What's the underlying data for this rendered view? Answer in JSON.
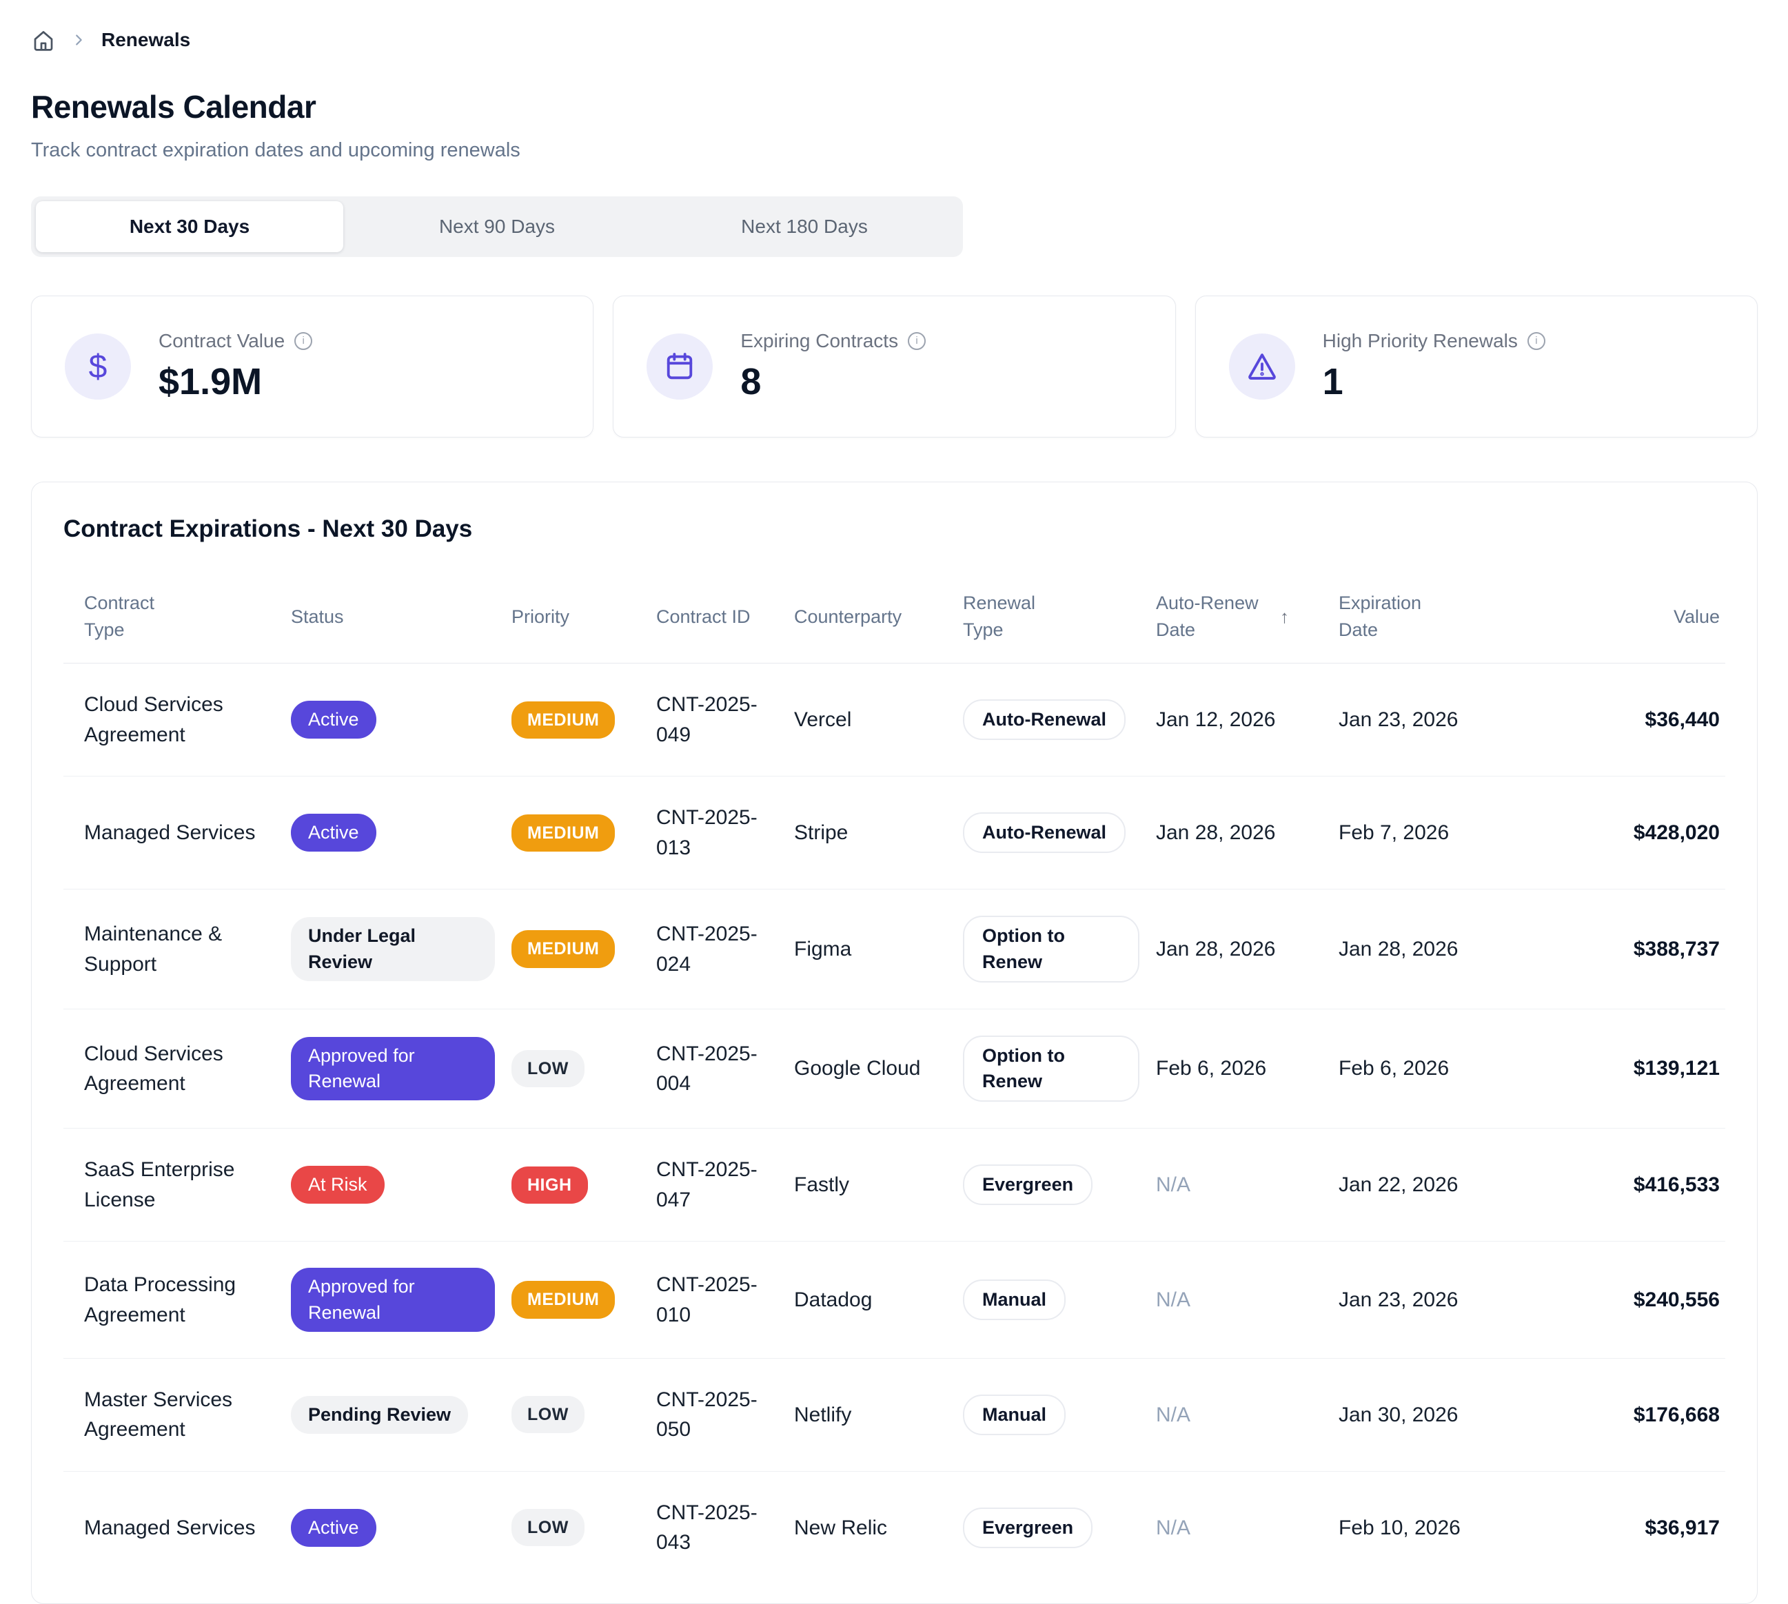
{
  "breadcrumb": {
    "home_icon": "home-icon",
    "separator": "›",
    "current": "Renewals"
  },
  "header": {
    "title": "Renewals Calendar",
    "subtitle": "Track contract expiration dates and upcoming renewals"
  },
  "tabs": [
    {
      "label": "Next 30 Days",
      "active": true
    },
    {
      "label": "Next 90 Days",
      "active": false
    },
    {
      "label": "Next 180 Days",
      "active": false
    }
  ],
  "stats": [
    {
      "icon": "dollar-icon",
      "label": "Contract Value",
      "value": "$1.9M"
    },
    {
      "icon": "calendar-icon",
      "label": "Expiring Contracts",
      "value": "8"
    },
    {
      "icon": "warning-icon",
      "label": "High Priority Renewals",
      "value": "1"
    }
  ],
  "table": {
    "title": "Contract Expirations - Next 30 Days",
    "columns": [
      "Contract Type",
      "Status",
      "Priority",
      "Contract ID",
      "Counterparty",
      "Renewal Type",
      "Auto-Renew Date",
      "Expiration Date",
      "Value"
    ],
    "sorted_column": "Auto-Renew Date",
    "sort_direction": "asc",
    "sort_icon": "↑",
    "rows": [
      {
        "contract_type": "Cloud Services Agreement",
        "status": "Active",
        "status_style": "purple",
        "priority": "MEDIUM",
        "priority_style": "orange",
        "contract_id": "CNT-2025-049",
        "counterparty": "Vercel",
        "renewal_type": "Auto-Renewal",
        "auto_renew_date": "Jan 12, 2026",
        "expiration_date": "Jan 23, 2026",
        "value": "$36,440"
      },
      {
        "contract_type": "Managed Services",
        "status": "Active",
        "status_style": "purple",
        "priority": "MEDIUM",
        "priority_style": "orange",
        "contract_id": "CNT-2025-013",
        "counterparty": "Stripe",
        "renewal_type": "Auto-Renewal",
        "auto_renew_date": "Jan 28, 2026",
        "expiration_date": "Feb 7, 2026",
        "value": "$428,020"
      },
      {
        "contract_type": "Maintenance & Support",
        "status": "Under Legal Review",
        "status_style": "gray",
        "priority": "MEDIUM",
        "priority_style": "orange",
        "contract_id": "CNT-2025-024",
        "counterparty": "Figma",
        "renewal_type": "Option to Renew",
        "auto_renew_date": "Jan 28, 2026",
        "expiration_date": "Jan 28, 2026",
        "value": "$388,737"
      },
      {
        "contract_type": "Cloud Services Agreement",
        "status": "Approved for Renewal",
        "status_style": "purple",
        "priority": "LOW",
        "priority_style": "gray",
        "contract_id": "CNT-2025-004",
        "counterparty": "Google Cloud",
        "renewal_type": "Option to Renew",
        "auto_renew_date": "Feb 6, 2026",
        "expiration_date": "Feb 6, 2026",
        "value": "$139,121"
      },
      {
        "contract_type": "SaaS Enterprise License",
        "status": "At Risk",
        "status_style": "red",
        "priority": "HIGH",
        "priority_style": "red",
        "contract_id": "CNT-2025-047",
        "counterparty": "Fastly",
        "renewal_type": "Evergreen",
        "auto_renew_date": "N/A",
        "expiration_date": "Jan 22, 2026",
        "value": "$416,533"
      },
      {
        "contract_type": "Data Processing Agreement",
        "status": "Approved for Renewal",
        "status_style": "purple",
        "priority": "MEDIUM",
        "priority_style": "orange",
        "contract_id": "CNT-2025-010",
        "counterparty": "Datadog",
        "renewal_type": "Manual",
        "auto_renew_date": "N/A",
        "expiration_date": "Jan 23, 2026",
        "value": "$240,556"
      },
      {
        "contract_type": "Master Services Agreement",
        "status": "Pending Review",
        "status_style": "gray",
        "priority": "LOW",
        "priority_style": "gray",
        "contract_id": "CNT-2025-050",
        "counterparty": "Netlify",
        "renewal_type": "Manual",
        "auto_renew_date": "N/A",
        "expiration_date": "Jan 30, 2026",
        "value": "$176,668"
      },
      {
        "contract_type": "Managed Services",
        "status": "Active",
        "status_style": "purple",
        "priority": "LOW",
        "priority_style": "gray",
        "contract_id": "CNT-2025-043",
        "counterparty": "New Relic",
        "renewal_type": "Evergreen",
        "auto_renew_date": "N/A",
        "expiration_date": "Feb 10, 2026",
        "value": "$36,917"
      }
    ]
  },
  "colors": {
    "accent_purple": "#5747DB",
    "badge_orange": "#F09D0F",
    "badge_red": "#E94747",
    "pill_gray_bg": "#F1F2F4",
    "icon_circle_bg": "#EDEDFB",
    "text_dark": "#0B1526",
    "text_gray": "#64748B",
    "border": "#E7E9EE"
  }
}
